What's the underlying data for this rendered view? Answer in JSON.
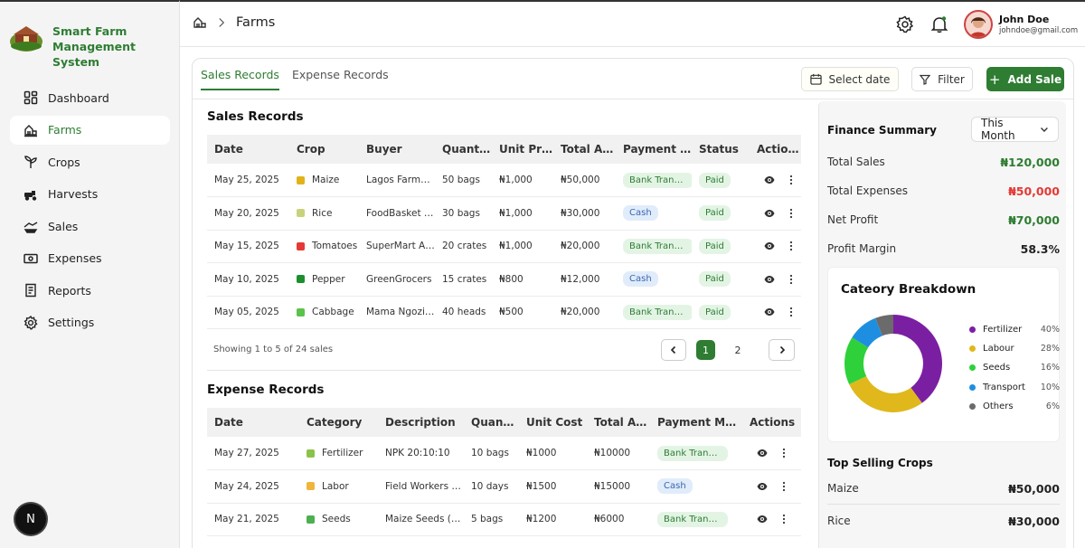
{
  "sidebar": {
    "brand_line1": "Smart Farm",
    "brand_line2": "Management System",
    "items": [
      {
        "label": "Dashboard",
        "icon": "dashboard-icon"
      },
      {
        "label": "Farms",
        "icon": "farm-icon",
        "active": true
      },
      {
        "label": "Crops",
        "icon": "crop-icon"
      },
      {
        "label": "Harvests",
        "icon": "harvest-icon"
      },
      {
        "label": "Sales",
        "icon": "sales-icon"
      },
      {
        "label": "Expenses",
        "icon": "expense-icon"
      },
      {
        "label": "Reports",
        "icon": "report-icon"
      },
      {
        "label": "Settings",
        "icon": "settings-icon"
      }
    ],
    "bottom_avatar": "N"
  },
  "header": {
    "breadcrumb": "Farms",
    "user_name": "John Doe",
    "user_email": "johndoe@gmail.com"
  },
  "toolbar": {
    "tabs": [
      "Sales Records",
      "Expense Records"
    ],
    "select_date": "Select date",
    "filter": "Filter",
    "add_sale": "Add Sale"
  },
  "sales": {
    "title": "Sales Records",
    "columns": [
      "Date",
      "Crop",
      "Buyer",
      "Quantity",
      "Unit Price",
      "Total Amount",
      "Payment Method",
      "Status",
      "Actions"
    ],
    "rows": [
      {
        "date": "May 25, 2025",
        "crop": "Maize",
        "buyer": "Lagos Farms Ltd",
        "quantity": "50 bags",
        "unit_price": "₦1,000",
        "total": "₦50,000",
        "payment": "Bank Transfer",
        "status": "Paid"
      },
      {
        "date": "May 20, 2025",
        "crop": "Rice",
        "buyer": "FoodBasket Stores",
        "quantity": "30 bags",
        "unit_price": "₦1,000",
        "total": "₦30,000",
        "payment": "Cash",
        "status": "Paid"
      },
      {
        "date": "May 15, 2025",
        "crop": "Tomatoes",
        "buyer": "SuperMart Abuja",
        "quantity": "20 crates",
        "unit_price": "₦1,000",
        "total": "₦20,000",
        "payment": "Bank Transfer",
        "status": "Paid"
      },
      {
        "date": "May 10, 2025",
        "crop": "Pepper",
        "buyer": "GreenGrocers",
        "quantity": "15 crates",
        "unit_price": "₦800",
        "total": "₦12,000",
        "payment": "Cash",
        "status": "Paid"
      },
      {
        "date": "May 05, 2025",
        "crop": "Cabbage",
        "buyer": "Mama Ngozi Market",
        "quantity": "40 heads",
        "unit_price": "₦500",
        "total": "₦20,000",
        "payment": "Bank Transfer",
        "status": "Paid"
      }
    ],
    "showing": "Showing 1 to 5 of 24 sales",
    "pages": [
      "1",
      "2"
    ]
  },
  "expenses": {
    "title": "Expense Records",
    "columns": [
      "Date",
      "Category",
      "Description",
      "Quantity",
      "Unit Cost",
      "Total Amount",
      "Payment Method",
      "Actions"
    ],
    "rows": [
      {
        "date": "May 27, 2025",
        "category": "Fertilizer",
        "description": "NPK 20:10:10",
        "quantity": "10 bags",
        "unit_cost": "₦1000",
        "total": "₦10000",
        "payment": "Bank Transfer"
      },
      {
        "date": "May 24, 2025",
        "category": "Labor",
        "description": "Field Workers (Weeding)",
        "quantity": "10 days",
        "unit_cost": "₦1500",
        "total": "₦15000",
        "payment": "Cash"
      },
      {
        "date": "May 21, 2025",
        "category": "Seeds",
        "description": "Maize Seeds (Hybrid)",
        "quantity": "5 bags",
        "unit_cost": "₦1200",
        "total": "₦6000",
        "payment": "Bank Transfer"
      }
    ]
  },
  "finance": {
    "title": "Finance Summary",
    "period": "This Month",
    "rows": [
      {
        "label": "Total Sales",
        "value": "₦120,000",
        "color": "#2e7d32"
      },
      {
        "label": "Total Expenses",
        "value": "₦50,000",
        "color": "#e53935"
      },
      {
        "label": "Net Profit",
        "value": "₦70,000",
        "color": "#2e7d32"
      },
      {
        "label": "Profit Margin",
        "value": "58.3%",
        "color": "#222222"
      }
    ]
  },
  "breakdown": {
    "title": "Cateory Breakdown",
    "items": [
      {
        "label": "Fertilizer",
        "pct": "40%",
        "value": 40,
        "color": "#7b1fa2"
      },
      {
        "label": "Labour",
        "pct": "28%",
        "value": 28,
        "color": "#e0b81c"
      },
      {
        "label": "Seeds",
        "pct": "16%",
        "value": 16,
        "color": "#2ed13a"
      },
      {
        "label": "Transport",
        "pct": "10%",
        "value": 10,
        "color": "#1e8fe0"
      },
      {
        "label": "Others",
        "pct": "6%",
        "value": 6,
        "color": "#6b6b6b"
      }
    ]
  },
  "top_crops": {
    "title": "Top Selling Crops",
    "rows": [
      {
        "label": "Maize",
        "value": "₦50,000"
      },
      {
        "label": "Rice",
        "value": "₦30,000"
      }
    ]
  }
}
